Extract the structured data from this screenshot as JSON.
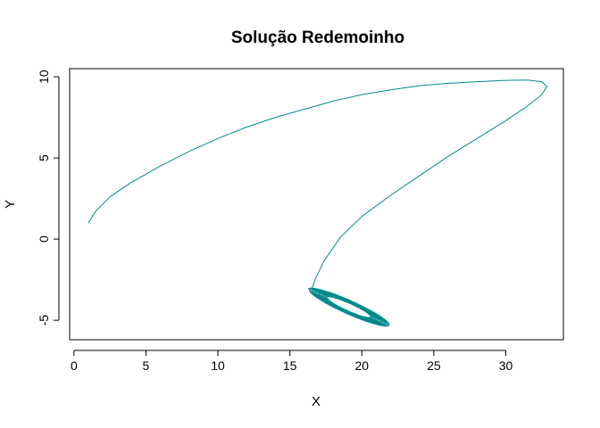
{
  "chart_data": {
    "type": "line",
    "title": "Solução Redemoinho",
    "xlabel": "X",
    "ylabel": "Y",
    "xlim": [
      -0.3,
      34.0
    ],
    "ylim": [
      -6.2,
      10.5
    ],
    "xticks": [
      0,
      5,
      10,
      15,
      20,
      25,
      30
    ],
    "yticks": [
      -5,
      0,
      5,
      10
    ],
    "grid": false,
    "series_color": "#008B8B",
    "series": [
      {
        "name": "",
        "trajectory": [
          [
            1.0,
            1.0
          ],
          [
            1.5,
            1.7
          ],
          [
            2.5,
            2.6
          ],
          [
            4.0,
            3.5
          ],
          [
            6.0,
            4.5
          ],
          [
            8.0,
            5.4
          ],
          [
            10.0,
            6.2
          ],
          [
            12.0,
            6.9
          ],
          [
            14.0,
            7.5
          ],
          [
            16.0,
            8.0
          ],
          [
            18.0,
            8.5
          ],
          [
            20.0,
            8.9
          ],
          [
            22.0,
            9.2
          ],
          [
            24.0,
            9.45
          ],
          [
            26.0,
            9.6
          ],
          [
            28.0,
            9.7
          ],
          [
            30.0,
            9.78
          ],
          [
            31.5,
            9.8
          ],
          [
            32.5,
            9.7
          ],
          [
            32.85,
            9.4
          ],
          [
            32.5,
            8.9
          ],
          [
            31.5,
            8.2
          ],
          [
            30.0,
            7.3
          ],
          [
            28.0,
            6.2
          ],
          [
            26.0,
            5.1
          ],
          [
            24.0,
            3.9
          ],
          [
            22.0,
            2.7
          ],
          [
            20.0,
            1.4
          ],
          [
            18.5,
            0.1
          ],
          [
            17.4,
            -1.3
          ],
          [
            16.8,
            -2.4
          ],
          [
            16.5,
            -3.1
          ]
        ],
        "limit_cycle": {
          "center": [
            19.1,
            -4.2
          ],
          "outer_x_range": [
            16.0,
            22.2
          ],
          "outer_y_range": [
            -5.6,
            -3.0
          ],
          "inner_x_range": [
            17.5,
            20.7
          ],
          "inner_y_range": [
            -4.9,
            -3.5
          ],
          "turns": 16
        }
      }
    ]
  }
}
